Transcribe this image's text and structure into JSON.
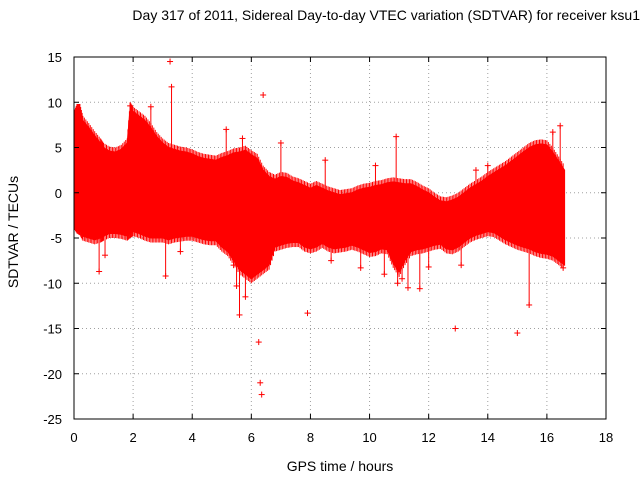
{
  "chart_data": {
    "type": "scatter",
    "title": "Day 317 of 2011, Sidereal Day-to-day VTEC variation (SDTVAR) for receiver ksu1",
    "xlabel": "GPS time / hours",
    "ylabel": "SDTVAR / TECUs",
    "xlim": [
      0,
      18
    ],
    "ylim": [
      -25,
      15
    ],
    "xticks": [
      0,
      2,
      4,
      6,
      8,
      10,
      12,
      14,
      16,
      18
    ],
    "yticks": [
      -25,
      -20,
      -15,
      -10,
      -5,
      0,
      5,
      10,
      15
    ],
    "grid": true,
    "series": [
      {
        "name": "SDTVAR",
        "color": "#ff0000",
        "marker": "plus-with-errorbars",
        "envelope": {
          "x": [
            0.0,
            0.1,
            0.2,
            0.3,
            0.5,
            0.7,
            0.9,
            1.0,
            1.2,
            1.4,
            1.6,
            1.8,
            1.9,
            2.0,
            2.2,
            2.4,
            2.6,
            2.8,
            3.0,
            3.2,
            3.4,
            3.6,
            3.8,
            4.0,
            4.2,
            4.4,
            4.6,
            4.8,
            5.0,
            5.2,
            5.4,
            5.6,
            5.8,
            6.0,
            6.2,
            6.4,
            6.6,
            6.8,
            7.0,
            7.2,
            7.4,
            7.6,
            7.8,
            8.0,
            8.2,
            8.4,
            8.6,
            8.8,
            9.0,
            9.2,
            9.4,
            9.6,
            9.8,
            10.0,
            10.2,
            10.4,
            10.6,
            10.8,
            11.0,
            11.2,
            11.4,
            11.6,
            11.8,
            12.0,
            12.2,
            12.4,
            12.6,
            12.8,
            13.0,
            13.2,
            13.4,
            13.6,
            13.8,
            14.0,
            14.2,
            14.4,
            14.6,
            14.8,
            15.0,
            15.2,
            15.4,
            15.6,
            15.8,
            16.0,
            16.2,
            16.4,
            16.6
          ],
          "upper": [
            8.5,
            9.3,
            9.3,
            8.0,
            7.2,
            6.3,
            5.5,
            5.0,
            4.6,
            4.5,
            4.8,
            5.5,
            9.5,
            9.0,
            8.5,
            8.0,
            7.2,
            6.2,
            5.5,
            5.0,
            4.8,
            4.6,
            4.5,
            4.3,
            4.0,
            3.8,
            3.7,
            3.6,
            3.9,
            4.1,
            4.4,
            4.5,
            4.7,
            4.2,
            3.8,
            2.5,
            1.8,
            1.5,
            1.8,
            1.7,
            1.3,
            1.1,
            0.8,
            0.5,
            0.8,
            0.5,
            0.2,
            0.0,
            -0.2,
            -0.1,
            0.0,
            0.3,
            0.5,
            0.6,
            0.8,
            0.9,
            1.1,
            1.2,
            1.1,
            1.0,
            1.0,
            0.7,
            0.3,
            0.0,
            -0.5,
            -0.9,
            -1.0,
            -0.8,
            -0.5,
            0.0,
            0.5,
            0.9,
            1.3,
            1.8,
            2.2,
            2.6,
            3.0,
            3.5,
            4.0,
            4.5,
            5.0,
            5.3,
            5.4,
            5.3,
            4.5,
            3.5,
            2.5
          ],
          "lower": [
            -3.5,
            -4.0,
            -4.2,
            -4.8,
            -5.0,
            -5.2,
            -5.0,
            -4.8,
            -4.5,
            -4.5,
            -4.6,
            -4.8,
            -4.5,
            -4.3,
            -4.5,
            -4.8,
            -5.0,
            -5.0,
            -5.0,
            -5.2,
            -5.0,
            -4.9,
            -4.8,
            -4.8,
            -5.0,
            -5.2,
            -5.3,
            -5.3,
            -6.0,
            -6.5,
            -7.5,
            -8.5,
            -9.0,
            -9.5,
            -9.0,
            -8.5,
            -8.0,
            -6.0,
            -5.8,
            -5.6,
            -5.5,
            -5.5,
            -6.0,
            -6.2,
            -6.0,
            -5.6,
            -6.0,
            -6.2,
            -6.1,
            -6.0,
            -5.8,
            -6.0,
            -6.3,
            -6.6,
            -6.5,
            -6.2,
            -6.3,
            -7.8,
            -8.8,
            -7.5,
            -6.5,
            -6.3,
            -6.2,
            -6.0,
            -5.8,
            -5.7,
            -6.2,
            -6.3,
            -6.0,
            -5.5,
            -5.0,
            -4.7,
            -4.5,
            -4.3,
            -4.4,
            -4.8,
            -5.2,
            -5.5,
            -5.8,
            -6.0,
            -6.2,
            -6.5,
            -6.7,
            -6.8,
            -7.0,
            -7.5,
            -8.0
          ]
        },
        "outliers": [
          [
            0.85,
            -8.7
          ],
          [
            1.05,
            -6.9
          ],
          [
            1.9,
            9.6
          ],
          [
            2.6,
            9.5
          ],
          [
            3.1,
            -9.2
          ],
          [
            3.25,
            14.5
          ],
          [
            3.3,
            11.7
          ],
          [
            3.6,
            -6.5
          ],
          [
            5.15,
            7.0
          ],
          [
            5.4,
            -8.0
          ],
          [
            5.5,
            -10.3
          ],
          [
            5.6,
            -13.5
          ],
          [
            5.7,
            6.0
          ],
          [
            5.8,
            -11.5
          ],
          [
            6.1,
            -8.6
          ],
          [
            6.25,
            -16.5
          ],
          [
            6.3,
            -21.0
          ],
          [
            6.35,
            -22.3
          ],
          [
            6.4,
            10.8
          ],
          [
            7.0,
            5.5
          ],
          [
            7.9,
            -13.3
          ],
          [
            8.5,
            3.6
          ],
          [
            8.7,
            -7.5
          ],
          [
            9.7,
            -8.3
          ],
          [
            10.2,
            3.0
          ],
          [
            10.5,
            -9.0
          ],
          [
            10.9,
            6.2
          ],
          [
            10.95,
            -10.0
          ],
          [
            11.1,
            -9.5
          ],
          [
            11.3,
            -10.5
          ],
          [
            11.7,
            -10.6
          ],
          [
            12.0,
            -8.2
          ],
          [
            12.9,
            -15.0
          ],
          [
            13.1,
            -8.0
          ],
          [
            13.6,
            2.5
          ],
          [
            14.0,
            3.0
          ],
          [
            14.7,
            -3.0
          ],
          [
            15.0,
            -15.5
          ],
          [
            15.4,
            -12.4
          ],
          [
            15.85,
            -6.0
          ],
          [
            16.2,
            6.7
          ],
          [
            16.45,
            7.4
          ],
          [
            16.55,
            -8.3
          ]
        ]
      }
    ]
  }
}
